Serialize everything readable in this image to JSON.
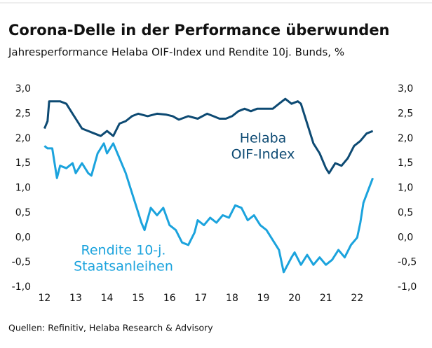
{
  "chart_data": {
    "type": "line",
    "title": "Corona-Delle in der Performance überwunden",
    "subtitle": "Jahresperformance Helaba OIF-Index und Rendite 10j. Bunds, %",
    "source": "Quellen: Refinitiv, Helaba Research & Advisory",
    "xlim": [
      11.7,
      22.8
    ],
    "xticks": [
      12,
      13,
      14,
      15,
      16,
      17,
      18,
      19,
      20,
      21,
      22
    ],
    "ylim": [
      -1,
      3
    ],
    "yticks": [
      {
        "value": 3,
        "label": "3,0"
      },
      {
        "value": 2.5,
        "label": "2,5"
      },
      {
        "value": 2,
        "label": "2,0"
      },
      {
        "value": 1.5,
        "label": "1,5"
      },
      {
        "value": 1,
        "label": "1,0"
      },
      {
        "value": 0.5,
        "label": "0,5"
      },
      {
        "value": 0,
        "label": "0,0"
      },
      {
        "value": -0.5,
        "label": "-0,5"
      },
      {
        "value": -1,
        "label": "-1,0"
      }
    ],
    "y2lim": [
      -1,
      3
    ],
    "y2ticks": [
      {
        "value": 3,
        "label": "3,0"
      },
      {
        "value": 2.5,
        "label": "2,5"
      },
      {
        "value": 2,
        "label": "2,0"
      },
      {
        "value": 1.5,
        "label": "1,5"
      },
      {
        "value": 1,
        "label": "1,0"
      },
      {
        "value": 0.5,
        "label": "0,5"
      },
      {
        "value": 0,
        "label": "0,0"
      },
      {
        "value": -0.5,
        "label": "-0,5"
      },
      {
        "value": -1,
        "label": "-1,0"
      }
    ],
    "series": [
      {
        "label": [
          "Helaba",
          "OIF-Index"
        ],
        "color": "#0d4a73",
        "x": [
          12.0,
          12.1,
          12.15,
          12.3,
          12.5,
          12.7,
          12.9,
          13.0,
          13.2,
          13.4,
          13.6,
          13.8,
          14.0,
          14.2,
          14.4,
          14.6,
          14.8,
          15.0,
          15.3,
          15.6,
          15.9,
          16.1,
          16.3,
          16.6,
          16.9,
          17.2,
          17.4,
          17.6,
          17.8,
          18.0,
          18.2,
          18.4,
          18.6,
          18.8,
          19.0,
          19.3,
          19.5,
          19.7,
          19.9,
          20.1,
          20.2,
          20.4,
          20.6,
          20.8,
          21.0,
          21.1,
          21.3,
          21.5,
          21.7,
          21.9,
          22.1,
          22.3,
          22.5
        ],
        "values": [
          2.2,
          2.35,
          2.75,
          2.75,
          2.75,
          2.7,
          2.5,
          2.4,
          2.2,
          2.15,
          2.1,
          2.05,
          2.15,
          2.05,
          2.3,
          2.35,
          2.45,
          2.5,
          2.45,
          2.5,
          2.48,
          2.45,
          2.38,
          2.45,
          2.4,
          2.5,
          2.45,
          2.4,
          2.4,
          2.45,
          2.55,
          2.6,
          2.55,
          2.6,
          2.6,
          2.6,
          2.7,
          2.8,
          2.7,
          2.75,
          2.7,
          2.3,
          1.9,
          1.7,
          1.4,
          1.3,
          1.5,
          1.45,
          1.6,
          1.85,
          1.95,
          2.1,
          2.15
        ]
      },
      {
        "label": [
          "Rendite 10-j.",
          "Staatsanleihen"
        ],
        "color": "#1ba3dd",
        "x": [
          12.0,
          12.1,
          12.25,
          12.4,
          12.5,
          12.7,
          12.9,
          13.0,
          13.2,
          13.4,
          13.5,
          13.7,
          13.9,
          14.0,
          14.2,
          14.4,
          14.6,
          14.8,
          15.0,
          15.1,
          15.2,
          15.4,
          15.6,
          15.8,
          16.0,
          16.2,
          16.4,
          16.6,
          16.8,
          16.9,
          17.1,
          17.3,
          17.5,
          17.7,
          17.9,
          18.1,
          18.3,
          18.5,
          18.7,
          18.9,
          19.1,
          19.3,
          19.5,
          19.65,
          19.9,
          20.0,
          20.2,
          20.4,
          20.6,
          20.8,
          21.0,
          21.2,
          21.4,
          21.6,
          21.8,
          22.0,
          22.1,
          22.2,
          22.5
        ],
        "values": [
          1.85,
          1.8,
          1.8,
          1.2,
          1.45,
          1.4,
          1.5,
          1.3,
          1.5,
          1.3,
          1.25,
          1.7,
          1.9,
          1.7,
          1.9,
          1.6,
          1.3,
          0.9,
          0.5,
          0.3,
          0.15,
          0.6,
          0.45,
          0.6,
          0.25,
          0.15,
          -0.1,
          -0.15,
          0.1,
          0.35,
          0.25,
          0.4,
          0.3,
          0.45,
          0.4,
          0.65,
          0.6,
          0.35,
          0.45,
          0.25,
          0.15,
          -0.05,
          -0.25,
          -0.7,
          -0.4,
          -0.3,
          -0.55,
          -0.35,
          -0.55,
          -0.4,
          -0.55,
          -0.45,
          -0.25,
          -0.4,
          -0.15,
          0.0,
          0.3,
          0.7,
          1.2
        ]
      }
    ]
  }
}
